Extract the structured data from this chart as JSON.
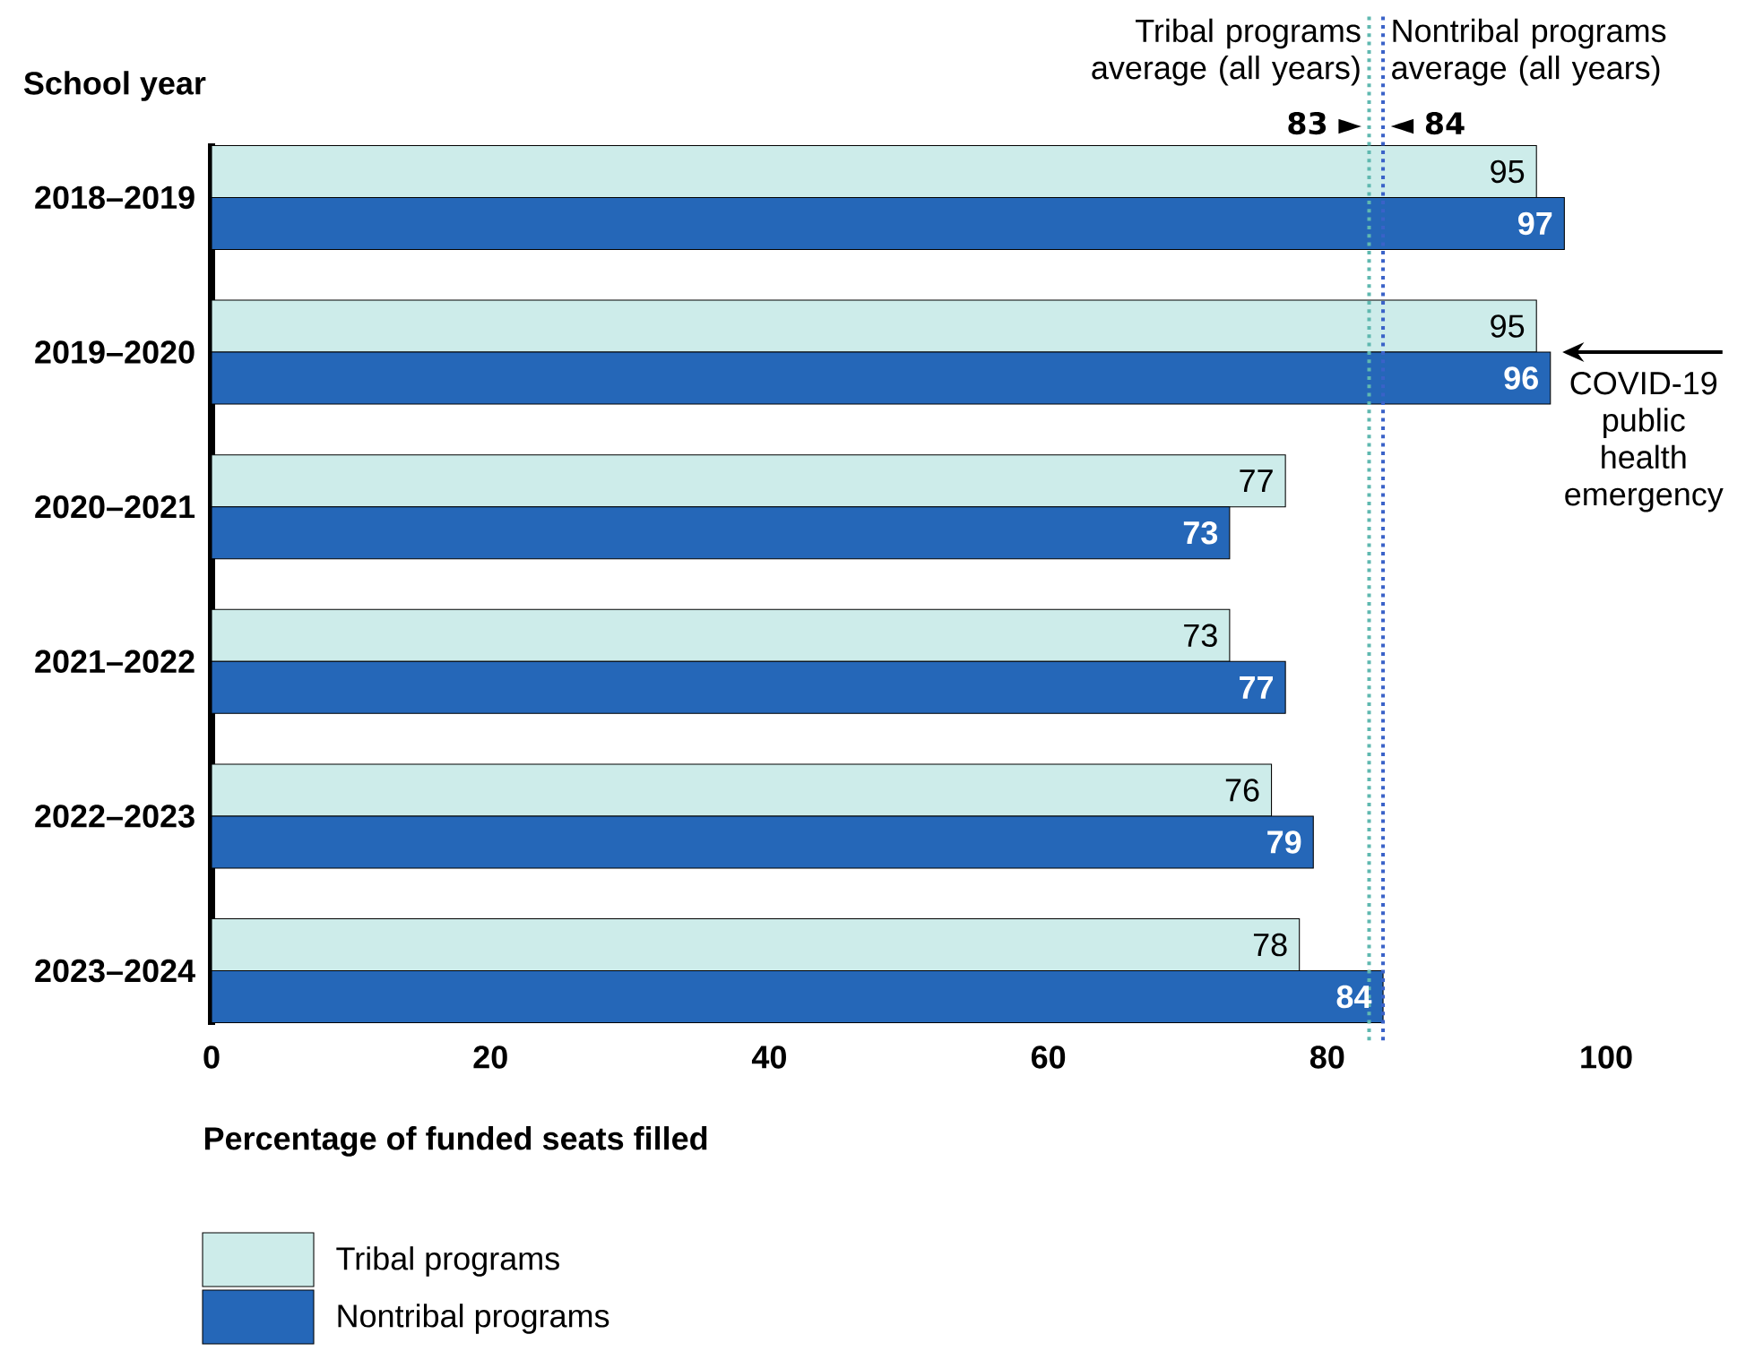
{
  "chart_data": {
    "type": "bar",
    "orientation": "horizontal",
    "ylabel": "School year",
    "xlabel": "Percentage of funded seats filled",
    "categories": [
      "2018–2019",
      "2019–2020",
      "2020–2021",
      "2021–2022",
      "2022–2023",
      "2023–2024"
    ],
    "series": [
      {
        "name": "Tribal programs",
        "color": "#cdecea",
        "values": [
          95,
          95,
          77,
          73,
          76,
          78
        ]
      },
      {
        "name": "Nontribal programs",
        "color": "#2567b8",
        "values": [
          97,
          96,
          73,
          77,
          79,
          84
        ]
      }
    ],
    "xlim": [
      0,
      100
    ],
    "xticks": [
      0,
      20,
      40,
      60,
      80,
      100
    ],
    "data_labels": true,
    "legend": "bottom left",
    "grid": false,
    "ref_lines": [
      {
        "axis": "x",
        "value": 83,
        "label": "Tribal programs average (all years)",
        "color": "#5fb8b0",
        "line_style": "dotted"
      },
      {
        "axis": "x",
        "value": 84,
        "label": "Nontribal programs average (all years)",
        "color": "#3a62c8",
        "line_style": "dotted"
      }
    ],
    "annotations": [
      "83 ►",
      "◄ 84",
      {
        "text": "COVID-19 public health emergency",
        "x": 96,
        "y": "2019–2020"
      }
    ]
  }
}
